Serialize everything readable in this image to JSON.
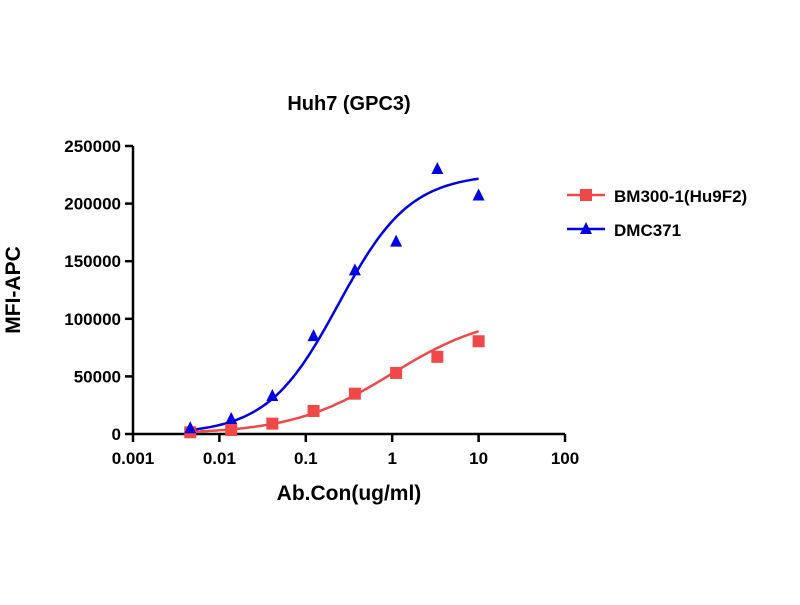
{
  "chart_data": {
    "type": "scatter",
    "title": "Huh7 (GPC3)",
    "xlabel": "Ab.Con(ug/ml)",
    "ylabel": "MFI-APC",
    "xscale": "log",
    "xlim": [
      0.001,
      100
    ],
    "ylim": [
      0,
      250000
    ],
    "xticks": [
      "0.001",
      "0.01",
      "0.1",
      "1",
      "10",
      "100"
    ],
    "xtick_values": [
      0.001,
      0.01,
      0.1,
      1,
      10,
      100
    ],
    "yticks": [
      "0",
      "50000",
      "100000",
      "150000",
      "200000",
      "250000"
    ],
    "ytick_values": [
      0,
      50000,
      100000,
      150000,
      200000,
      250000
    ],
    "legend_position": "right",
    "series": [
      {
        "name": "BM300-1(Hu9F2)",
        "color": "#f04848",
        "marker": "square",
        "x": [
          0.0046,
          0.0137,
          0.041,
          0.123,
          0.37,
          1.11,
          3.33,
          10
        ],
        "y": [
          1500,
          3500,
          9000,
          20000,
          35000,
          53000,
          67000,
          80500
        ],
        "fit": {
          "bottom": 0,
          "top": 105000,
          "ec50": 1.0,
          "hill": 0.75
        }
      },
      {
        "name": "DMC371",
        "color": "#0000e0",
        "marker": "triangle",
        "x": [
          0.0046,
          0.0137,
          0.041,
          0.123,
          0.37,
          1.11,
          3.33,
          10
        ],
        "y": [
          5000,
          13000,
          33000,
          85000,
          142000,
          167000,
          230000,
          207000
        ],
        "fit": {
          "bottom": 0,
          "top": 226000,
          "ec50": 0.24,
          "hill": 1.05
        }
      }
    ]
  }
}
